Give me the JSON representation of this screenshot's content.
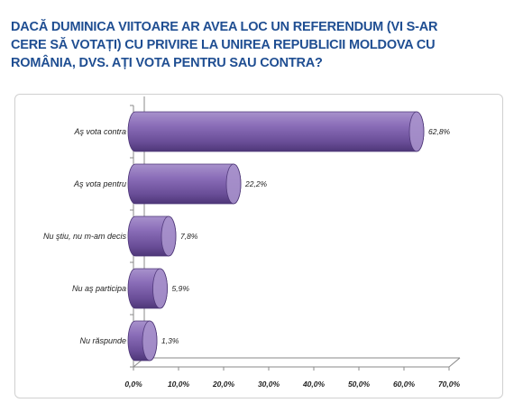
{
  "title_lines": [
    "DACĂ DUMINICA VIITOARE AR AVEA LOC UN REFERENDUM  (VI  S-AR",
    "CERE SĂ VOTAȚI)  CU PRIVIRE  LA UNIREA REPUBLICII MOLDOVA CU",
    "ROMÂNIA, DVS. AȚI VOTA PENTRU SAU CONTRA?"
  ],
  "chart_data": {
    "type": "bar",
    "orientation": "horizontal",
    "style": "3d-cylinder",
    "categories": [
      "Aş vota contra",
      "Aş vota pentru",
      "Nu ştiu, nu m-am decis",
      "Nu aş participa",
      "Nu răspunde"
    ],
    "values": [
      62.8,
      22.2,
      7.8,
      5.9,
      1.3
    ],
    "value_labels": [
      "62,8%",
      "22,2%",
      "7,8%",
      "5,9%",
      "1,3%"
    ],
    "xlim": [
      0,
      70
    ],
    "xticks": [
      0,
      10,
      20,
      30,
      40,
      50,
      60,
      70
    ],
    "xtick_labels": [
      "0,0%",
      "10,0%",
      "20,0%",
      "30,0%",
      "40,0%",
      "50,0%",
      "60,0%",
      "70,0%"
    ],
    "grid": false,
    "colors": {
      "bar": "#7c5fa8",
      "bar_dark": "#4e3778",
      "bar_light": "#a892cc",
      "axis": "#8a8a8a",
      "title": "#1f4e92"
    }
  }
}
